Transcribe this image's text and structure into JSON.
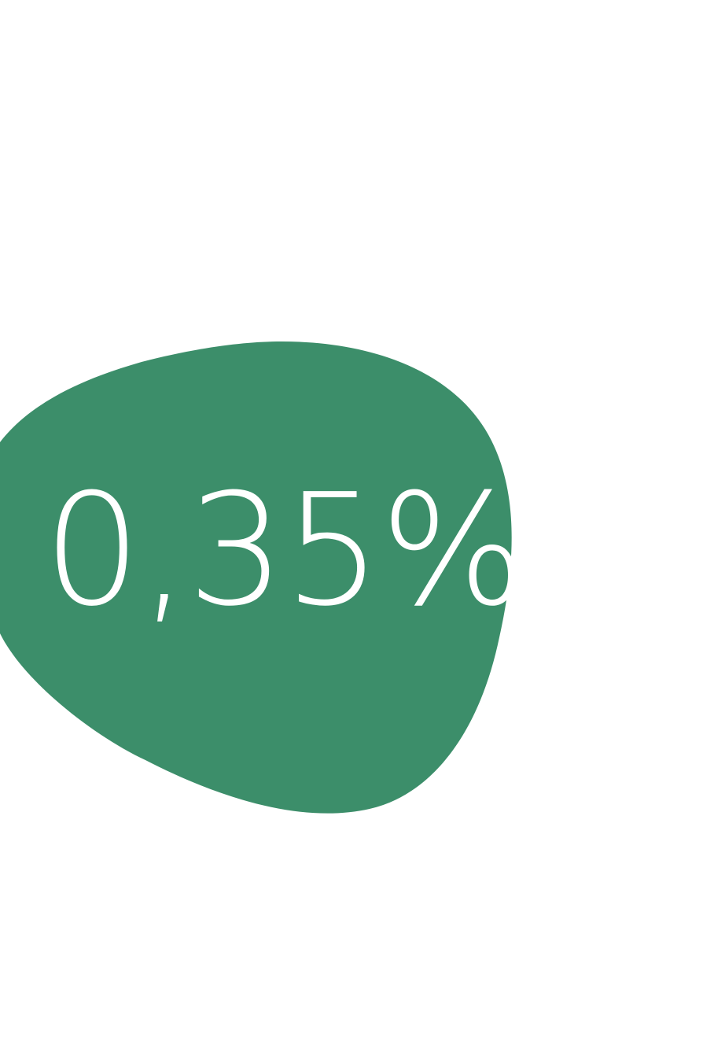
{
  "stat": {
    "value": "0,35%"
  },
  "colors": {
    "background": "#ffffff",
    "blob_fill": "#3c8e6a",
    "text": "#ffffff"
  }
}
